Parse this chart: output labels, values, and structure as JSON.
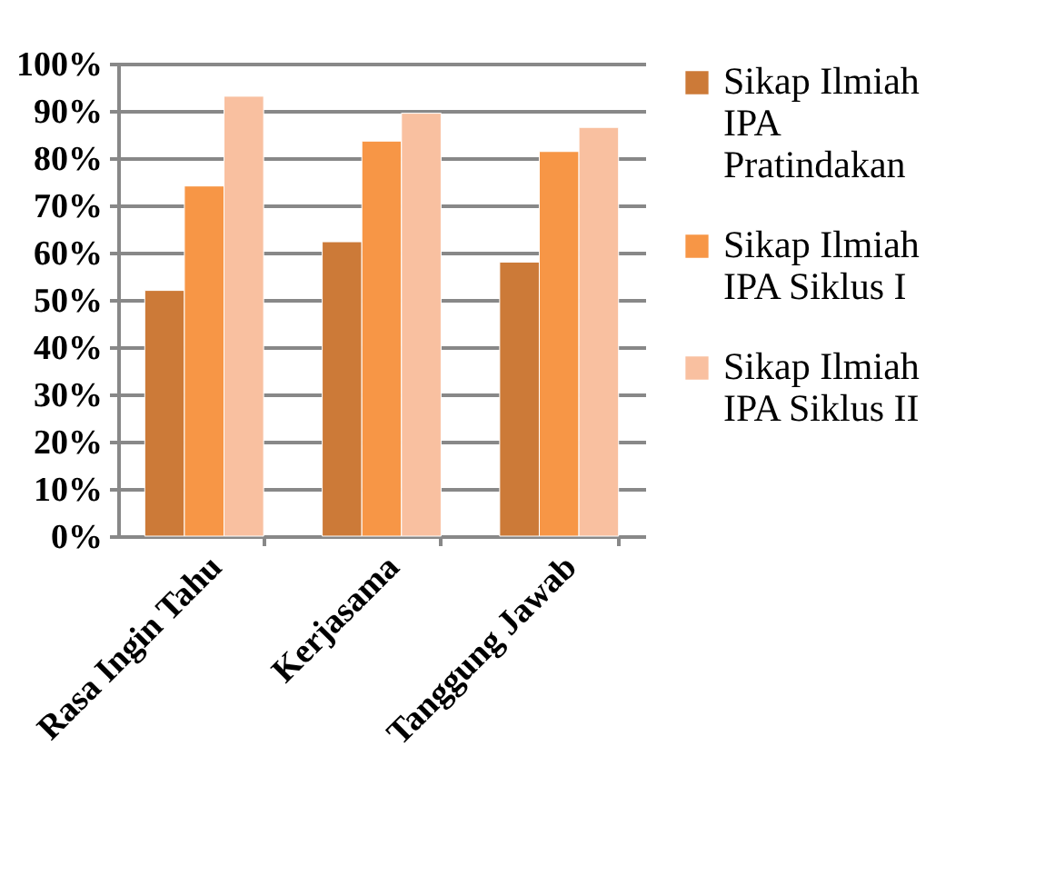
{
  "chart_data": {
    "type": "bar",
    "categories": [
      "Rasa Ingin Tahu",
      "Kerjasama",
      "Tanggung Jawab"
    ],
    "series": [
      {
        "name": "Sikap Ilmiah IPA Pratindakan",
        "color": "#cc7a38",
        "values": [
          52,
          62.3,
          58
        ]
      },
      {
        "name": "Sikap Ilmiah IPA Siklus I",
        "color": "#f79646",
        "values": [
          74.1,
          83.6,
          81.4
        ]
      },
      {
        "name": "Sikap Ilmiah IPA Siklus II",
        "color": "#f9c0a0",
        "values": [
          93.1,
          89.5,
          86.5
        ]
      }
    ],
    "ylim": [
      0,
      100
    ],
    "yticks": [
      {
        "value": 0,
        "label": "0%"
      },
      {
        "value": 10,
        "label": "10%"
      },
      {
        "value": 20,
        "label": "20%"
      },
      {
        "value": 30,
        "label": "30%"
      },
      {
        "value": 40,
        "label": "40%"
      },
      {
        "value": 50,
        "label": "50%"
      },
      {
        "value": 60,
        "label": "60%"
      },
      {
        "value": 70,
        "label": "70%"
      },
      {
        "value": 80,
        "label": "80%"
      },
      {
        "value": 90,
        "label": "90%"
      },
      {
        "value": 100,
        "label": "100%"
      }
    ],
    "grid": "y",
    "legend": "right"
  }
}
